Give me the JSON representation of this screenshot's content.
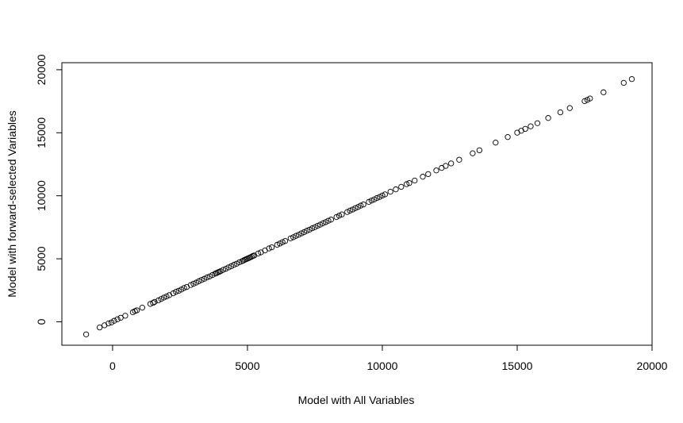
{
  "chart_data": {
    "type": "scatter",
    "xlabel": "Model with All Variables",
    "ylabel": "Model with forward-selected Variables",
    "xlim": [
      -1880,
      20000
    ],
    "ylim": [
      -1860,
      20560
    ],
    "x_ticks": [
      0,
      5000,
      10000,
      15000,
      20000
    ],
    "y_ticks": [
      0,
      5000,
      10000,
      15000,
      20000
    ],
    "x_tick_labels": [
      "0",
      "5000",
      "10000",
      "15000",
      "20000"
    ],
    "y_tick_labels": [
      "0",
      "5000",
      "10000",
      "15000",
      "20000"
    ],
    "grid": false,
    "legend": "none",
    "marker": "open-circle",
    "series": [
      {
        "points": [
          [
            -980,
            -1000
          ],
          [
            -480,
            -450
          ],
          [
            -300,
            -280
          ],
          [
            -150,
            -130
          ],
          [
            -40,
            -50
          ],
          [
            60,
            80
          ],
          [
            180,
            200
          ],
          [
            300,
            320
          ],
          [
            470,
            480
          ],
          [
            750,
            760
          ],
          [
            830,
            850
          ],
          [
            900,
            910
          ],
          [
            1100,
            1120
          ],
          [
            1400,
            1420
          ],
          [
            1500,
            1500
          ],
          [
            1560,
            1580
          ],
          [
            1700,
            1700
          ],
          [
            1800,
            1810
          ],
          [
            1900,
            1920
          ],
          [
            2000,
            2010
          ],
          [
            2100,
            2110
          ],
          [
            2250,
            2260
          ],
          [
            2350,
            2380
          ],
          [
            2450,
            2460
          ],
          [
            2550,
            2560
          ],
          [
            2650,
            2680
          ],
          [
            2750,
            2760
          ],
          [
            2900,
            2920
          ],
          [
            3000,
            3020
          ],
          [
            3100,
            3110
          ],
          [
            3200,
            3220
          ],
          [
            3300,
            3320
          ],
          [
            3400,
            3410
          ],
          [
            3500,
            3520
          ],
          [
            3600,
            3600
          ],
          [
            3700,
            3710
          ],
          [
            3800,
            3820
          ],
          [
            3850,
            3860
          ],
          [
            3900,
            3920
          ],
          [
            3950,
            3960
          ],
          [
            4000,
            4010
          ],
          [
            4100,
            4120
          ],
          [
            4200,
            4210
          ],
          [
            4300,
            4320
          ],
          [
            4400,
            4410
          ],
          [
            4500,
            4520
          ],
          [
            4600,
            4610
          ],
          [
            4700,
            4720
          ],
          [
            4800,
            4810
          ],
          [
            4850,
            4860
          ],
          [
            4900,
            4920
          ],
          [
            4950,
            4960
          ],
          [
            5000,
            5010
          ],
          [
            5050,
            5060
          ],
          [
            5100,
            5110
          ],
          [
            5150,
            5160
          ],
          [
            5200,
            5220
          ],
          [
            5250,
            5260
          ],
          [
            5400,
            5420
          ],
          [
            5500,
            5510
          ],
          [
            5650,
            5660
          ],
          [
            5800,
            5820
          ],
          [
            5900,
            5910
          ],
          [
            6100,
            6110
          ],
          [
            6200,
            6210
          ],
          [
            6300,
            6320
          ],
          [
            6400,
            6410
          ],
          [
            6600,
            6620
          ],
          [
            6700,
            6710
          ],
          [
            6800,
            6820
          ],
          [
            6900,
            6910
          ],
          [
            7000,
            7020
          ],
          [
            7100,
            7110
          ],
          [
            7200,
            7220
          ],
          [
            7300,
            7310
          ],
          [
            7400,
            7420
          ],
          [
            7500,
            7510
          ],
          [
            7600,
            7620
          ],
          [
            7700,
            7710
          ],
          [
            7800,
            7820
          ],
          [
            7900,
            7910
          ],
          [
            8000,
            8020
          ],
          [
            8100,
            8110
          ],
          [
            8300,
            8310
          ],
          [
            8400,
            8420
          ],
          [
            8500,
            8520
          ],
          [
            8700,
            8710
          ],
          [
            8800,
            8820
          ],
          [
            8900,
            8910
          ],
          [
            9000,
            9020
          ],
          [
            9100,
            9110
          ],
          [
            9200,
            9220
          ],
          [
            9300,
            9310
          ],
          [
            9500,
            9510
          ],
          [
            9600,
            9620
          ],
          [
            9700,
            9710
          ],
          [
            9800,
            9820
          ],
          [
            9900,
            9910
          ],
          [
            10000,
            10020
          ],
          [
            10100,
            10110
          ],
          [
            10300,
            10320
          ],
          [
            10500,
            10510
          ],
          [
            10700,
            10710
          ],
          [
            10900,
            10920
          ],
          [
            11000,
            11010
          ],
          [
            11200,
            11210
          ],
          [
            11500,
            11510
          ],
          [
            11700,
            11720
          ],
          [
            12000,
            12010
          ],
          [
            12200,
            12210
          ],
          [
            12350,
            12370
          ],
          [
            12550,
            12570
          ],
          [
            12850,
            12860
          ],
          [
            13350,
            13370
          ],
          [
            13600,
            13610
          ],
          [
            14200,
            14220
          ],
          [
            14650,
            14660
          ],
          [
            15000,
            15010
          ],
          [
            15150,
            15160
          ],
          [
            15300,
            15310
          ],
          [
            15500,
            15510
          ],
          [
            15750,
            15760
          ],
          [
            16150,
            16170
          ],
          [
            16600,
            16620
          ],
          [
            16950,
            16960
          ],
          [
            17500,
            17510
          ],
          [
            17600,
            17610
          ],
          [
            17700,
            17720
          ],
          [
            18200,
            18210
          ],
          [
            18950,
            18960
          ],
          [
            19250,
            19260
          ]
        ]
      }
    ]
  }
}
